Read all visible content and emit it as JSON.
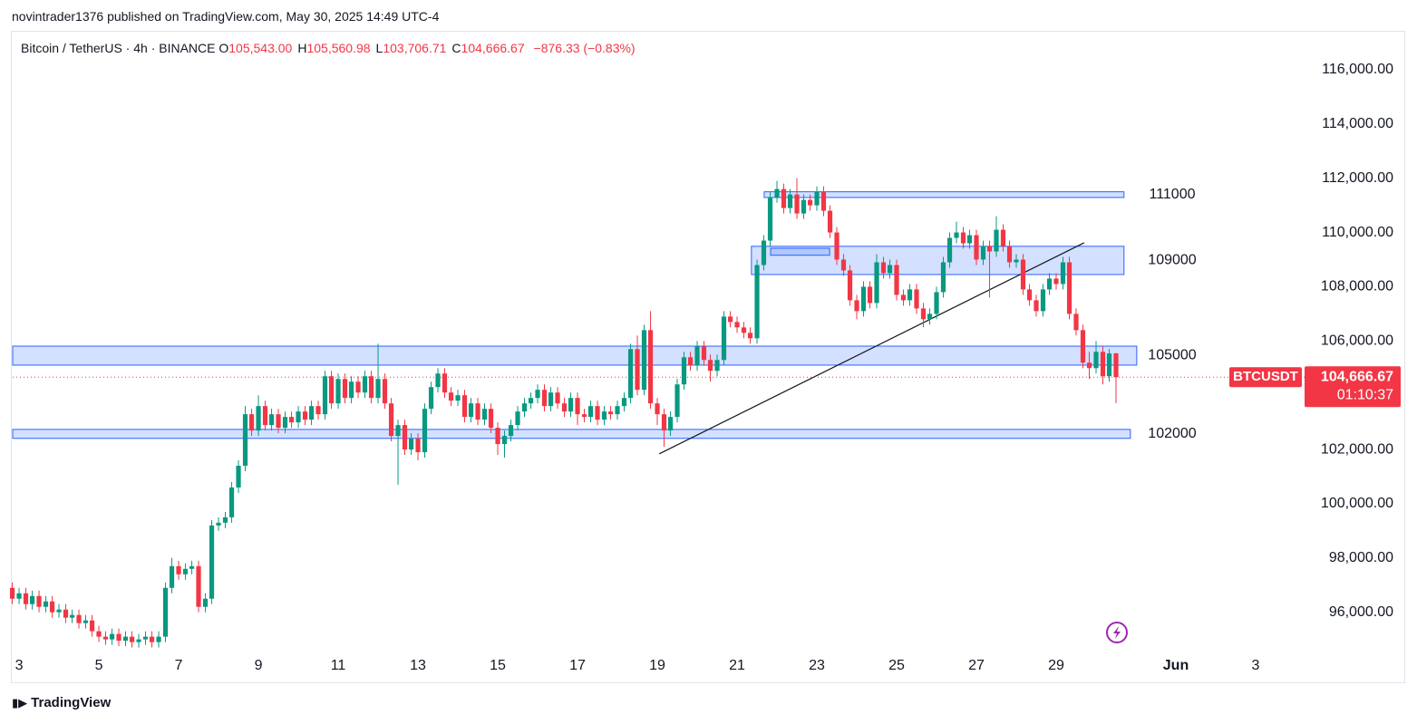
{
  "header": "novintrader1376 published on TradingView.com, May 30, 2025 14:49 UTC-4",
  "footer": "TradingView",
  "chart_data": {
    "type": "candlestick",
    "symbol": "Bitcoin / TetherUS · 4h · BINANCE",
    "ohlc_legend": [
      {
        "key": "O",
        "text": "105,543.00"
      },
      {
        "key": "H",
        "text": "105,560.98"
      },
      {
        "key": "L",
        "text": "103,706.71"
      },
      {
        "key": "C",
        "text": "104,666.67"
      }
    ],
    "change": "−876.33 (−0.83%)",
    "up_color": "#089981",
    "down_color": "#f23645",
    "x": [
      2.83,
      3,
      3.17,
      3.33,
      3.5,
      3.67,
      3.83,
      4,
      4.17,
      4.33,
      4.5,
      4.67,
      4.83,
      5,
      5.17,
      5.33,
      5.5,
      5.67,
      5.83,
      6,
      6.17,
      6.33,
      6.5,
      6.67,
      6.83,
      7,
      7.17,
      7.33,
      7.5,
      7.67,
      7.83,
      8,
      8.17,
      8.33,
      8.5,
      8.67,
      8.83,
      9,
      9.17,
      9.33,
      9.5,
      9.67,
      9.83,
      10,
      10.17,
      10.33,
      10.5,
      10.67,
      10.83,
      11,
      11.17,
      11.33,
      11.5,
      11.67,
      11.83,
      12,
      12.17,
      12.33,
      12.5,
      12.67,
      12.83,
      13,
      13.17,
      13.33,
      13.5,
      13.67,
      13.83,
      14,
      14.17,
      14.33,
      14.5,
      14.67,
      14.83,
      15,
      15.17,
      15.33,
      15.5,
      15.67,
      15.83,
      16,
      16.17,
      16.33,
      16.5,
      16.67,
      16.83,
      17,
      17.17,
      17.33,
      17.5,
      17.67,
      17.83,
      18,
      18.17,
      18.33,
      18.5,
      18.67,
      18.83,
      19,
      19.17,
      19.33,
      19.5,
      19.67,
      19.83,
      20,
      20.17,
      20.33,
      20.5,
      20.67,
      20.83,
      21,
      21.17,
      21.33,
      21.5,
      21.67,
      21.83,
      22,
      22.17,
      22.33,
      22.5,
      22.67,
      22.83,
      23,
      23.17,
      23.33,
      23.5,
      23.67,
      23.83,
      24,
      24.17,
      24.33,
      24.5,
      24.67,
      24.83,
      25,
      25.17,
      25.33,
      25.5,
      25.67,
      25.83,
      26,
      26.17,
      26.33,
      26.5,
      26.67,
      26.83,
      27,
      27.17,
      27.33,
      27.5,
      27.67,
      27.83,
      28,
      28.17,
      28.33,
      28.5,
      28.67,
      28.83,
      29,
      29.17,
      29.33,
      29.5,
      29.67,
      29.83,
      30,
      30.17,
      30.33,
      30.5
    ],
    "open": [
      96900,
      96500,
      96700,
      96300,
      96600,
      96200,
      96400,
      96000,
      96100,
      95800,
      95900,
      95600,
      95700,
      95300,
      95100,
      95000,
      95200,
      94950,
      95100,
      94900,
      95000,
      95100,
      94900,
      95100,
      96900,
      97700,
      97400,
      97600,
      97700,
      96200,
      96500,
      99200,
      99300,
      99500,
      100600,
      101400,
      103300,
      102700,
      103600,
      102900,
      103300,
      102800,
      103200,
      103000,
      103400,
      103100,
      103600,
      103300,
      104700,
      103700,
      104600,
      103900,
      104500,
      104100,
      104700,
      103900,
      104600,
      103700,
      102500,
      102900,
      102000,
      102400,
      101900,
      103500,
      104300,
      104800,
      104100,
      103800,
      104000,
      103200,
      103700,
      103100,
      103500,
      102800,
      102200,
      102500,
      102900,
      103400,
      103700,
      103900,
      104200,
      103600,
      104100,
      103700,
      103400,
      103900,
      103300,
      103200,
      103600,
      103100,
      103400,
      103300,
      103600,
      103900,
      105700,
      104200,
      106400,
      103700,
      103300,
      102700,
      103200,
      104400,
      105400,
      105100,
      105800,
      105300,
      104900,
      105300,
      106900,
      106700,
      106500,
      106300,
      106100,
      108800,
      109700,
      111300,
      111600,
      110900,
      111400,
      110700,
      111200,
      111000,
      111500,
      110800,
      110000,
      109000,
      108600,
      107500,
      107100,
      108000,
      107400,
      108900,
      108500,
      108800,
      107700,
      107500,
      107900,
      107200,
      106800,
      107000,
      107800,
      108900,
      109800,
      110000,
      109600,
      109900,
      109000,
      109500,
      109300,
      110100,
      109500,
      108900,
      109000,
      107900,
      107500,
      107100,
      107900,
      108300,
      108100,
      108900,
      107000,
      106400,
      105200,
      105000,
      105600,
      104700,
      105543
    ],
    "high": [
      97100,
      96900,
      96900,
      96800,
      96800,
      96600,
      96600,
      96300,
      96300,
      96100,
      96100,
      95900,
      95900,
      95500,
      95300,
      95400,
      95400,
      95300,
      95300,
      95200,
      95300,
      95300,
      95300,
      97100,
      98000,
      97900,
      97800,
      97900,
      97900,
      96700,
      99400,
      99500,
      99700,
      100800,
      101600,
      103600,
      103500,
      104000,
      103800,
      103500,
      103500,
      103400,
      103400,
      103600,
      103600,
      103800,
      103800,
      104900,
      104900,
      104800,
      104800,
      104700,
      104700,
      104900,
      104900,
      105900,
      104800,
      103900,
      103100,
      103100,
      102600,
      102600,
      103700,
      104500,
      105000,
      105000,
      104300,
      104200,
      104200,
      103900,
      103900,
      103700,
      103700,
      103000,
      102700,
      103100,
      103600,
      103900,
      104100,
      104400,
      104400,
      104300,
      104300,
      103900,
      104100,
      104100,
      103500,
      103800,
      103800,
      103600,
      103600,
      103800,
      104100,
      105900,
      106200,
      106600,
      107100,
      103900,
      103500,
      103400,
      104600,
      105600,
      105600,
      106000,
      106000,
      105500,
      105500,
      107100,
      107100,
      106900,
      106700,
      106500,
      109000,
      109900,
      111500,
      111900,
      111800,
      111600,
      112000,
      111400,
      111400,
      111700,
      111700,
      111000,
      110200,
      109200,
      108800,
      107700,
      108200,
      108200,
      109200,
      109100,
      109000,
      109000,
      107900,
      108100,
      108100,
      107400,
      107200,
      108000,
      109100,
      110000,
      110400,
      110200,
      110100,
      110100,
      109700,
      109700,
      110600,
      110300,
      109700,
      109200,
      109200,
      108100,
      107700,
      108100,
      108500,
      108500,
      109100,
      109100,
      107200,
      106600,
      105600,
      106000,
      105800,
      105700,
      105560.98
    ],
    "low": [
      96300,
      96300,
      96100,
      96100,
      96000,
      96000,
      95800,
      95800,
      95600,
      95600,
      95400,
      95400,
      95100,
      94900,
      94800,
      94800,
      94750,
      94750,
      94700,
      94700,
      94800,
      94700,
      94700,
      94900,
      96700,
      97200,
      97200,
      97400,
      96000,
      96000,
      96300,
      99000,
      99100,
      99300,
      100400,
      101200,
      102500,
      102500,
      102700,
      102700,
      102600,
      102600,
      102800,
      102800,
      102900,
      102900,
      103100,
      103100,
      103500,
      103500,
      103700,
      103700,
      103900,
      103900,
      103700,
      103700,
      103500,
      102300,
      100700,
      101800,
      101800,
      101600,
      101700,
      103300,
      104100,
      103900,
      103600,
      103600,
      103000,
      103000,
      102900,
      102900,
      102600,
      101800,
      101700,
      102300,
      102700,
      103200,
      103500,
      103700,
      103400,
      103400,
      103500,
      103200,
      103200,
      102900,
      103000,
      103000,
      102900,
      102900,
      103100,
      103100,
      103400,
      103700,
      104000,
      104000,
      103500,
      102900,
      102100,
      102500,
      103000,
      104200,
      104900,
      104900,
      105100,
      104500,
      104700,
      105100,
      106500,
      106300,
      106100,
      105900,
      105900,
      108600,
      109500,
      111100,
      110700,
      110700,
      110500,
      110500,
      110800,
      110800,
      110600,
      109800,
      108800,
      108400,
      107300,
      106800,
      106900,
      107200,
      107200,
      108300,
      108300,
      107500,
      107300,
      107300,
      107000,
      106500,
      106600,
      106800,
      107600,
      108700,
      109600,
      109400,
      109400,
      108800,
      108800,
      107600,
      109100,
      109300,
      108700,
      108700,
      107700,
      107300,
      106900,
      106900,
      107700,
      107900,
      107900,
      106800,
      106200,
      105000,
      104600,
      104800,
      104400,
      104500,
      103706.71
    ],
    "close": [
      96500,
      96700,
      96300,
      96600,
      96200,
      96400,
      96000,
      96100,
      95800,
      95900,
      95600,
      95700,
      95300,
      95100,
      95000,
      95200,
      94950,
      95100,
      94900,
      95000,
      95100,
      94900,
      95100,
      96900,
      97700,
      97400,
      97600,
      97700,
      96200,
      96500,
      99200,
      99300,
      99500,
      100600,
      101400,
      103300,
      102700,
      103600,
      102900,
      103300,
      102800,
      103200,
      103000,
      103400,
      103100,
      103600,
      103300,
      104700,
      103700,
      104600,
      103900,
      104500,
      104100,
      104700,
      103900,
      104600,
      103700,
      102500,
      102900,
      102000,
      102400,
      101900,
      103500,
      104300,
      104800,
      104100,
      103800,
      104000,
      103200,
      103700,
      103100,
      103500,
      102800,
      102200,
      102500,
      102900,
      103400,
      103700,
      103900,
      104200,
      103600,
      104100,
      103700,
      103400,
      103900,
      103300,
      103200,
      103600,
      103100,
      103400,
      103300,
      103600,
      103900,
      105700,
      104200,
      106400,
      103700,
      103300,
      102700,
      103200,
      104400,
      105400,
      105100,
      105800,
      105300,
      104900,
      105300,
      106900,
      106700,
      106500,
      106300,
      106100,
      108800,
      109700,
      111300,
      111600,
      110900,
      111400,
      110700,
      111200,
      111000,
      111500,
      110800,
      110000,
      109000,
      108600,
      107500,
      107100,
      108000,
      107400,
      108900,
      108500,
      108800,
      107700,
      107500,
      107900,
      107200,
      106800,
      107000,
      107800,
      108900,
      109800,
      110000,
      109600,
      109900,
      109000,
      109500,
      109300,
      110100,
      109500,
      108900,
      109000,
      107900,
      107500,
      107100,
      107900,
      108300,
      108100,
      108900,
      107000,
      106400,
      105200,
      105000,
      105600,
      104700,
      105543,
      104666.67
    ],
    "xlim": [
      2.84,
      35.25
    ],
    "xticks": [
      3,
      5,
      7,
      9,
      11,
      13,
      15,
      17,
      19,
      21,
      23,
      25,
      27,
      29,
      {
        "value": 32,
        "label": "Jun"
      },
      {
        "value": 34,
        "label": "3"
      }
    ],
    "ylim": [
      94520,
      117400
    ],
    "yticks": [
      {
        "value": 96000,
        "label": "96,000.00"
      },
      {
        "value": 98000,
        "label": "98,000.00"
      },
      {
        "value": 100000,
        "label": "100,000.00"
      },
      {
        "value": 102000,
        "label": "102,000.00"
      },
      {
        "value": 104000,
        "label": "104,000.00"
      },
      {
        "value": 106000,
        "label": "106,000.00"
      },
      {
        "value": 108000,
        "label": "108,000.00"
      },
      {
        "value": 110000,
        "label": "110,000.00"
      },
      {
        "value": 112000,
        "label": "112,000.00"
      },
      {
        "value": 114000,
        "label": "114,000.00"
      },
      {
        "value": 116000,
        "label": "116,000.00"
      }
    ],
    "zones": [
      {
        "label": "111000",
        "top": 111500,
        "bottom": 111290,
        "x": [
          21.68,
          30.7
        ]
      },
      {
        "label": "109000",
        "top": 109490,
        "bottom": 108450,
        "x": [
          21.36,
          30.7
        ]
      },
      {
        "top": 109420,
        "bottom": 109160,
        "x": [
          21.84,
          23.32
        ]
      },
      {
        "label": "105000",
        "top": 105810,
        "bottom": 105110,
        "x": [
          2.84,
          31.02
        ]
      },
      {
        "label": "102000",
        "top": 102740,
        "bottom": 102410,
        "x": [
          2.84,
          30.86
        ]
      }
    ],
    "zone_color": "#2962ff",
    "trendlines": [
      {
        "x": [
          19.05,
          29.7
        ],
        "y": [
          101840,
          109620
        ]
      }
    ],
    "last_price": {
      "value": 104666.67,
      "label": "104,666.67"
    },
    "symbol_tag": "BTCUSDT",
    "countdown": "01:10:37"
  }
}
